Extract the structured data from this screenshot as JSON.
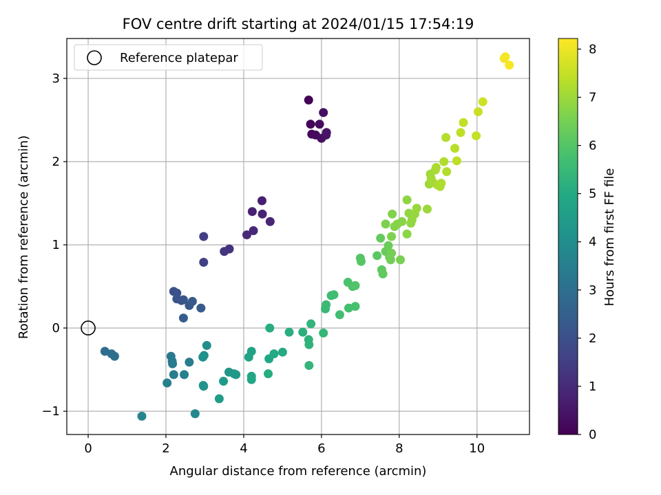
{
  "chart_data": {
    "type": "scatter",
    "title": "FOV centre drift starting at 2024/01/15 17:54:19",
    "xlabel": "Angular distance from reference (arcmin)",
    "ylabel": "Rotation from reference (arcmin)",
    "xlim": [
      -0.55,
      11.35
    ],
    "ylim": [
      -1.28,
      3.48
    ],
    "xticks": [
      0,
      2,
      4,
      6,
      8,
      10
    ],
    "yticks": [
      -1,
      0,
      1,
      2,
      3
    ],
    "xtick_labels": [
      "0",
      "2",
      "4",
      "6",
      "8",
      "10"
    ],
    "ytick_labels": [
      "−1",
      "0",
      "1",
      "2",
      "3"
    ],
    "grid": true,
    "legend": {
      "location": "upper-left",
      "entries": [
        "Reference platepar"
      ]
    },
    "reference_point": {
      "x": 0,
      "y": 0,
      "label": "Reference platepar"
    },
    "colorbar": {
      "label": "Hours from first FF file",
      "colormap": "viridis",
      "range": [
        0,
        8.22
      ],
      "ticks": [
        0,
        1,
        2,
        3,
        4,
        5,
        6,
        7,
        8
      ],
      "tick_labels": [
        "0",
        "1",
        "2",
        "3",
        "4",
        "5",
        "6",
        "7",
        "8"
      ]
    },
    "points": [
      {
        "x": 5.67,
        "y": 2.74,
        "c": 0.05
      },
      {
        "x": 5.72,
        "y": 2.45,
        "c": 0.1
      },
      {
        "x": 5.75,
        "y": 2.33,
        "c": 0.15
      },
      {
        "x": 5.85,
        "y": 2.32,
        "c": 0.2
      },
      {
        "x": 5.95,
        "y": 2.45,
        "c": 0.25
      },
      {
        "x": 6.05,
        "y": 2.59,
        "c": 0.3
      },
      {
        "x": 6.0,
        "y": 2.28,
        "c": 0.35
      },
      {
        "x": 6.12,
        "y": 2.32,
        "c": 0.4
      },
      {
        "x": 6.13,
        "y": 2.35,
        "c": 0.45
      },
      {
        "x": 4.47,
        "y": 1.53,
        "c": 0.7
      },
      {
        "x": 4.22,
        "y": 1.4,
        "c": 0.75
      },
      {
        "x": 4.48,
        "y": 1.37,
        "c": 0.8
      },
      {
        "x": 4.68,
        "y": 1.28,
        "c": 0.85
      },
      {
        "x": 4.25,
        "y": 1.17,
        "c": 0.9
      },
      {
        "x": 4.08,
        "y": 1.12,
        "c": 0.95
      },
      {
        "x": 3.63,
        "y": 0.95,
        "c": 1.2
      },
      {
        "x": 3.5,
        "y": 0.92,
        "c": 1.25
      },
      {
        "x": 2.97,
        "y": 1.1,
        "c": 1.5
      },
      {
        "x": 2.97,
        "y": 0.79,
        "c": 1.55
      },
      {
        "x": 2.2,
        "y": 0.44,
        "c": 2.0
      },
      {
        "x": 2.28,
        "y": 0.42,
        "c": 2.05
      },
      {
        "x": 2.28,
        "y": 0.35,
        "c": 2.1
      },
      {
        "x": 2.4,
        "y": 0.33,
        "c": 2.15
      },
      {
        "x": 2.45,
        "y": 0.34,
        "c": 2.2
      },
      {
        "x": 2.6,
        "y": 0.27,
        "c": 2.25
      },
      {
        "x": 2.68,
        "y": 0.32,
        "c": 2.3
      },
      {
        "x": 2.9,
        "y": 0.24,
        "c": 2.35
      },
      {
        "x": 2.45,
        "y": 0.12,
        "c": 2.4
      },
      {
        "x": 0.43,
        "y": -0.28,
        "c": 2.9
      },
      {
        "x": 0.6,
        "y": -0.31,
        "c": 2.95
      },
      {
        "x": 0.68,
        "y": -0.34,
        "c": 3.0
      },
      {
        "x": 2.13,
        "y": -0.34,
        "c": 3.3
      },
      {
        "x": 2.16,
        "y": -0.4,
        "c": 3.35
      },
      {
        "x": 2.17,
        "y": -0.43,
        "c": 3.4
      },
      {
        "x": 2.6,
        "y": -0.41,
        "c": 3.45
      },
      {
        "x": 2.2,
        "y": -0.56,
        "c": 3.5
      },
      {
        "x": 2.47,
        "y": -0.56,
        "c": 3.55
      },
      {
        "x": 2.03,
        "y": -0.66,
        "c": 3.6
      },
      {
        "x": 1.38,
        "y": -1.06,
        "c": 3.7
      },
      {
        "x": 2.75,
        "y": -1.03,
        "c": 3.8
      },
      {
        "x": 3.05,
        "y": -0.21,
        "c": 4.0
      },
      {
        "x": 2.98,
        "y": -0.33,
        "c": 4.05
      },
      {
        "x": 2.95,
        "y": -0.35,
        "c": 4.1
      },
      {
        "x": 2.96,
        "y": -0.69,
        "c": 4.15
      },
      {
        "x": 2.97,
        "y": -0.7,
        "c": 4.2
      },
      {
        "x": 3.62,
        "y": -0.53,
        "c": 4.3
      },
      {
        "x": 3.75,
        "y": -0.55,
        "c": 4.35
      },
      {
        "x": 3.8,
        "y": -0.56,
        "c": 4.4
      },
      {
        "x": 3.48,
        "y": -0.64,
        "c": 4.45
      },
      {
        "x": 3.37,
        "y": -0.85,
        "c": 4.5
      },
      {
        "x": 4.2,
        "y": -0.28,
        "c": 4.7
      },
      {
        "x": 4.13,
        "y": -0.35,
        "c": 4.75
      },
      {
        "x": 4.2,
        "y": -0.58,
        "c": 4.8
      },
      {
        "x": 4.2,
        "y": -0.62,
        "c": 4.85
      },
      {
        "x": 4.65,
        "y": -0.37,
        "c": 4.9
      },
      {
        "x": 4.78,
        "y": -0.31,
        "c": 4.95
      },
      {
        "x": 5.0,
        "y": -0.29,
        "c": 5.0
      },
      {
        "x": 4.63,
        "y": -0.55,
        "c": 5.05
      },
      {
        "x": 4.67,
        "y": 0.0,
        "c": 5.1
      },
      {
        "x": 5.17,
        "y": -0.05,
        "c": 5.15
      },
      {
        "x": 5.52,
        "y": -0.05,
        "c": 5.2
      },
      {
        "x": 5.67,
        "y": -0.14,
        "c": 5.25
      },
      {
        "x": 5.68,
        "y": -0.2,
        "c": 5.3
      },
      {
        "x": 5.73,
        "y": 0.05,
        "c": 5.35
      },
      {
        "x": 5.68,
        "y": -0.45,
        "c": 5.4
      },
      {
        "x": 6.05,
        "y": -0.06,
        "c": 5.45
      },
      {
        "x": 6.1,
        "y": 0.23,
        "c": 5.5
      },
      {
        "x": 6.12,
        "y": 0.28,
        "c": 5.55
      },
      {
        "x": 6.25,
        "y": 0.39,
        "c": 5.6
      },
      {
        "x": 6.32,
        "y": 0.4,
        "c": 5.65
      },
      {
        "x": 6.47,
        "y": 0.16,
        "c": 5.7
      },
      {
        "x": 6.7,
        "y": 0.24,
        "c": 5.75
      },
      {
        "x": 6.87,
        "y": 0.26,
        "c": 5.8
      },
      {
        "x": 6.68,
        "y": 0.55,
        "c": 5.85
      },
      {
        "x": 6.8,
        "y": 0.5,
        "c": 5.9
      },
      {
        "x": 6.87,
        "y": 0.51,
        "c": 5.95
      },
      {
        "x": 7.0,
        "y": 0.84,
        "c": 6.0
      },
      {
        "x": 7.02,
        "y": 0.8,
        "c": 6.05
      },
      {
        "x": 7.43,
        "y": 0.87,
        "c": 6.1
      },
      {
        "x": 7.55,
        "y": 0.7,
        "c": 6.15
      },
      {
        "x": 7.58,
        "y": 0.65,
        "c": 6.2
      },
      {
        "x": 7.52,
        "y": 1.08,
        "c": 6.25
      },
      {
        "x": 7.65,
        "y": 0.92,
        "c": 6.3
      },
      {
        "x": 7.72,
        "y": 0.99,
        "c": 6.35
      },
      {
        "x": 7.75,
        "y": 0.85,
        "c": 6.4
      },
      {
        "x": 7.78,
        "y": 0.82,
        "c": 6.45
      },
      {
        "x": 7.8,
        "y": 0.9,
        "c": 6.5
      },
      {
        "x": 8.03,
        "y": 0.82,
        "c": 6.55
      },
      {
        "x": 7.65,
        "y": 1.25,
        "c": 6.6
      },
      {
        "x": 7.8,
        "y": 1.1,
        "c": 6.62
      },
      {
        "x": 7.82,
        "y": 1.37,
        "c": 6.65
      },
      {
        "x": 7.88,
        "y": 1.22,
        "c": 6.7
      },
      {
        "x": 7.95,
        "y": 1.25,
        "c": 6.72
      },
      {
        "x": 8.07,
        "y": 1.28,
        "c": 6.75
      },
      {
        "x": 8.2,
        "y": 1.13,
        "c": 6.8
      },
      {
        "x": 8.2,
        "y": 1.54,
        "c": 6.82
      },
      {
        "x": 8.25,
        "y": 1.38,
        "c": 6.85
      },
      {
        "x": 8.3,
        "y": 1.26,
        "c": 6.88
      },
      {
        "x": 8.33,
        "y": 1.3,
        "c": 6.9
      },
      {
        "x": 8.4,
        "y": 1.37,
        "c": 6.92
      },
      {
        "x": 8.45,
        "y": 1.44,
        "c": 6.95
      },
      {
        "x": 8.72,
        "y": 1.43,
        "c": 7.0
      },
      {
        "x": 8.77,
        "y": 1.73,
        "c": 7.02
      },
      {
        "x": 8.8,
        "y": 1.85,
        "c": 7.05
      },
      {
        "x": 8.82,
        "y": 1.8,
        "c": 7.08
      },
      {
        "x": 8.87,
        "y": 1.75,
        "c": 7.1
      },
      {
        "x": 8.93,
        "y": 1.9,
        "c": 7.12
      },
      {
        "x": 8.95,
        "y": 1.93,
        "c": 7.15
      },
      {
        "x": 8.98,
        "y": 1.72,
        "c": 7.18
      },
      {
        "x": 9.05,
        "y": 1.7,
        "c": 7.2
      },
      {
        "x": 9.08,
        "y": 1.74,
        "c": 7.22
      },
      {
        "x": 9.15,
        "y": 2.0,
        "c": 7.25
      },
      {
        "x": 9.22,
        "y": 1.88,
        "c": 7.28
      },
      {
        "x": 9.2,
        "y": 2.29,
        "c": 7.3
      },
      {
        "x": 9.43,
        "y": 2.16,
        "c": 7.35
      },
      {
        "x": 9.48,
        "y": 2.01,
        "c": 7.38
      },
      {
        "x": 9.58,
        "y": 2.35,
        "c": 7.42
      },
      {
        "x": 9.65,
        "y": 2.47,
        "c": 7.45
      },
      {
        "x": 9.98,
        "y": 2.31,
        "c": 7.5
      },
      {
        "x": 10.03,
        "y": 2.6,
        "c": 7.55
      },
      {
        "x": 10.15,
        "y": 2.72,
        "c": 7.6
      },
      {
        "x": 10.7,
        "y": 3.24,
        "c": 8.05
      },
      {
        "x": 10.73,
        "y": 3.26,
        "c": 8.1
      },
      {
        "x": 10.83,
        "y": 3.16,
        "c": 8.15
      }
    ]
  }
}
